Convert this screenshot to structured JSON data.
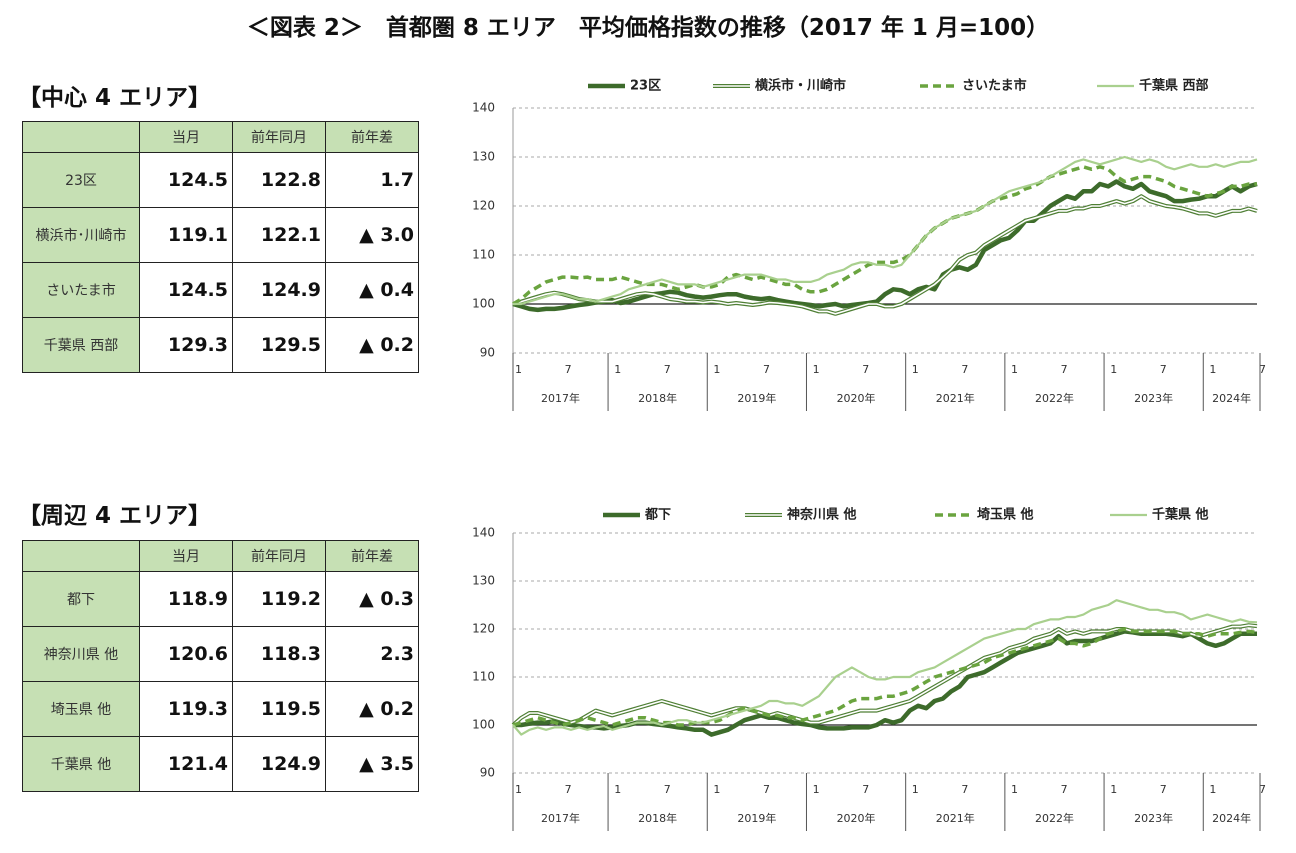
{
  "title": "＜図表 2＞　首都圏 8 エリア　平均価格指数の推移（2017 年 1 月=100）",
  "tables": [
    {
      "heading": "【中心 4 エリア】",
      "header": [
        "当月",
        "前年同月",
        "前年差"
      ],
      "rows": [
        {
          "label": "23区",
          "cells": [
            "124.5",
            "122.8",
            "1.7"
          ]
        },
        {
          "label": "横浜市･川崎市",
          "cells": [
            "119.1",
            "122.1",
            "▲ 3.0"
          ]
        },
        {
          "label": "さいたま市",
          "cells": [
            "124.5",
            "124.9",
            "▲ 0.4"
          ]
        },
        {
          "label": "千葉県 西部",
          "cells": [
            "129.3",
            "129.5",
            "▲ 0.2"
          ]
        }
      ]
    },
    {
      "heading": "【周辺 4 エリア】",
      "header": [
        "当月",
        "前年同月",
        "前年差"
      ],
      "rows": [
        {
          "label": "都下",
          "cells": [
            "118.9",
            "119.2",
            "▲ 0.3"
          ]
        },
        {
          "label": "神奈川県 他",
          "cells": [
            "120.6",
            "118.3",
            "2.3"
          ]
        },
        {
          "label": "埼玉県 他",
          "cells": [
            "119.3",
            "119.5",
            "▲ 0.2"
          ]
        },
        {
          "label": "千葉県 他",
          "cells": [
            "121.4",
            "124.9",
            "▲ 3.5"
          ]
        }
      ]
    }
  ],
  "chart_data": [
    {
      "type": "line",
      "ylim": [
        90,
        140
      ],
      "yticks": [
        90,
        100,
        110,
        120,
        130,
        140
      ],
      "grid": true,
      "baseline": 100,
      "legend": "top",
      "categories": [
        "1",
        null,
        null,
        null,
        null,
        null,
        "7",
        null,
        null,
        null,
        null,
        null,
        "1",
        null,
        null,
        null,
        null,
        null,
        "7",
        null,
        null,
        null,
        null,
        null,
        "1",
        null,
        null,
        null,
        null,
        null,
        "7",
        null,
        null,
        null,
        null,
        null,
        "1",
        null,
        null,
        null,
        null,
        null,
        "7",
        null,
        null,
        null,
        null,
        null,
        "1",
        null,
        null,
        null,
        null,
        null,
        "7",
        null,
        null,
        null,
        null,
        null,
        "1",
        null,
        null,
        null,
        null,
        null,
        "7",
        null,
        null,
        null,
        null,
        null,
        "1",
        null,
        null,
        null,
        null,
        null,
        "7",
        null,
        null,
        null,
        null,
        null,
        "1",
        null,
        null,
        null,
        null,
        null,
        "7"
      ],
      "year_labels": [
        "2017年",
        "2018年",
        "2019年",
        "2020年",
        "2021年",
        "2022年",
        "2023年",
        "2024年"
      ],
      "series": [
        {
          "name": "23区",
          "color": "#3d6b2b",
          "line_style": "thick",
          "values": [
            100,
            99.5,
            99,
            98.8,
            99,
            99,
            99.2,
            99.5,
            99.8,
            100,
            100.3,
            100.5,
            100.8,
            100.2,
            100.5,
            101,
            101.5,
            102,
            102.2,
            102.5,
            102.3,
            101.8,
            101.5,
            101.3,
            101.5,
            101.8,
            102,
            102,
            101.5,
            101.2,
            101,
            101.2,
            100.8,
            100.5,
            100.2,
            100,
            99.8,
            99.5,
            99.8,
            100,
            99.5,
            99.8,
            100,
            100.2,
            100.5,
            102,
            103,
            102.8,
            102,
            103,
            103.5,
            103,
            106,
            107,
            107.5,
            107,
            108,
            111,
            112,
            113,
            113.5,
            115,
            117,
            117,
            118.5,
            120,
            121,
            122,
            121.5,
            123,
            123,
            124.5,
            124,
            125,
            124,
            123.5,
            124.5,
            123,
            122.5,
            122,
            121,
            121,
            121.3,
            121.5,
            122,
            122,
            123,
            124,
            123,
            124,
            124.5
          ]
        },
        {
          "name": "横浜市・川崎市",
          "color": "#4f7f35",
          "line_style": "double",
          "values": [
            100,
            100.5,
            101,
            101.5,
            102,
            102.3,
            102,
            101.5,
            101,
            100.8,
            100.5,
            100.5,
            100.5,
            101,
            101.5,
            102,
            102.2,
            102,
            101.5,
            101,
            100.8,
            100.5,
            100.5,
            100.3,
            100.5,
            100.3,
            100,
            100.2,
            100,
            99.8,
            100,
            100.3,
            100.2,
            100,
            99.8,
            99.5,
            99,
            98.5,
            98.5,
            98,
            98.5,
            99,
            99.5,
            100,
            100,
            99.5,
            99.5,
            100,
            101,
            102,
            103,
            104,
            105.5,
            107,
            109,
            110,
            110.5,
            112,
            113,
            114,
            115,
            116,
            117,
            117.5,
            118,
            118.5,
            119,
            119,
            119.5,
            119.5,
            120,
            120,
            120.5,
            121,
            120.5,
            121,
            122,
            121,
            120.5,
            120,
            119.8,
            119.5,
            119,
            118.5,
            118.5,
            118,
            118.5,
            119,
            119,
            119.5,
            119
          ]
        },
        {
          "name": "さいたま市",
          "color": "#6aa43f",
          "line_style": "dashed",
          "values": [
            100,
            101,
            102.5,
            103.5,
            104.5,
            105,
            105.5,
            105.5,
            105.3,
            105.5,
            105,
            105,
            105,
            105.5,
            105,
            104.5,
            104,
            104,
            104,
            103.5,
            103,
            103.5,
            104,
            103.5,
            103.5,
            104,
            105.5,
            106,
            105.5,
            105,
            105.5,
            105,
            104.5,
            104,
            104,
            103,
            102.5,
            102.5,
            103,
            104,
            105,
            106,
            107,
            108,
            108.5,
            108.5,
            108.5,
            109,
            110,
            112,
            114,
            115.5,
            116.5,
            117.5,
            118,
            118.5,
            119,
            120,
            121,
            121.5,
            122,
            122.5,
            123.5,
            124,
            125,
            126,
            126.5,
            127,
            127.5,
            128,
            127.5,
            128,
            127.5,
            126,
            125,
            125.5,
            126,
            126,
            125.5,
            125,
            124,
            123.5,
            123,
            122.5,
            122,
            122.5,
            123,
            124,
            124,
            124.5,
            124.5
          ]
        },
        {
          "name": "千葉県 西部",
          "color": "#a9d08e",
          "line_style": "thin",
          "values": [
            100,
            100,
            100.5,
            101,
            101.5,
            102,
            102,
            101.5,
            101,
            101,
            100.5,
            101,
            101.5,
            102,
            103,
            103.5,
            104,
            104.5,
            105,
            104.5,
            104,
            104,
            104,
            103.5,
            104,
            104.5,
            105,
            105.5,
            106,
            106,
            106,
            105.5,
            105,
            105,
            104.5,
            104.5,
            104.5,
            105,
            106,
            106.5,
            107,
            108,
            108.5,
            108.5,
            108,
            108,
            107.5,
            108,
            110,
            112,
            114,
            115.5,
            116.5,
            117.5,
            118,
            118.5,
            119,
            120,
            121,
            122,
            123,
            123.5,
            124,
            124.5,
            125,
            126,
            127,
            128,
            129,
            129.5,
            129,
            128.5,
            129,
            129.5,
            130,
            129.5,
            129,
            129.5,
            129,
            128,
            127.5,
            128,
            128.5,
            128,
            128,
            128.5,
            128,
            128.5,
            129,
            129,
            129.5
          ]
        }
      ]
    },
    {
      "type": "line",
      "ylim": [
        90,
        140
      ],
      "yticks": [
        90,
        100,
        110,
        120,
        130,
        140
      ],
      "grid": true,
      "baseline": 100,
      "legend": "top",
      "categories": [
        "1",
        null,
        null,
        null,
        null,
        null,
        "7",
        null,
        null,
        null,
        null,
        null,
        "1",
        null,
        null,
        null,
        null,
        null,
        "7",
        null,
        null,
        null,
        null,
        null,
        "1",
        null,
        null,
        null,
        null,
        null,
        "7",
        null,
        null,
        null,
        null,
        null,
        "1",
        null,
        null,
        null,
        null,
        null,
        "7",
        null,
        null,
        null,
        null,
        null,
        "1",
        null,
        null,
        null,
        null,
        null,
        "7",
        null,
        null,
        null,
        null,
        null,
        "1",
        null,
        null,
        null,
        null,
        null,
        "7",
        null,
        null,
        null,
        null,
        null,
        "1",
        null,
        null,
        null,
        null,
        null,
        "7",
        null,
        null,
        null,
        null,
        null,
        "1",
        null,
        null,
        null,
        null,
        null,
        "7"
      ],
      "year_labels": [
        "2017年",
        "2018年",
        "2019年",
        "2020年",
        "2021年",
        "2022年",
        "2023年",
        "2024年"
      ],
      "series": [
        {
          "name": "都下",
          "color": "#3d6b2b",
          "line_style": "thick",
          "values": [
            100,
            100,
            100.3,
            100.5,
            100.5,
            100.8,
            100.3,
            100,
            99.8,
            99.5,
            99.5,
            99.3,
            99.5,
            99.8,
            100,
            100.5,
            100.5,
            100.2,
            100,
            99.8,
            99.5,
            99.3,
            99,
            99,
            98,
            98.5,
            99,
            100,
            101,
            101.5,
            102,
            101.5,
            101.5,
            101,
            100.5,
            100.2,
            100,
            99.5,
            99.3,
            99.3,
            99.3,
            99.5,
            99.5,
            99.5,
            100,
            101,
            100.5,
            101,
            103,
            104,
            103.5,
            105,
            105.5,
            107,
            108,
            110,
            110.5,
            111,
            112,
            113,
            114,
            115,
            115.5,
            116,
            116.5,
            117,
            118.5,
            117,
            117.5,
            117.5,
            117.5,
            118,
            118.5,
            119,
            119.5,
            119.3,
            119,
            119,
            119,
            119,
            118.8,
            118.5,
            119,
            118,
            117,
            116.5,
            117,
            118,
            119,
            119,
            119
          ]
        },
        {
          "name": "神奈川県 他",
          "color": "#4f7f35",
          "line_style": "double",
          "values": [
            100,
            101.5,
            102.5,
            102.5,
            102,
            101.5,
            101,
            100.5,
            101,
            102,
            103,
            102.5,
            102,
            102.5,
            103,
            103.5,
            104,
            104.5,
            105,
            104.5,
            104,
            103.5,
            103,
            102.5,
            102,
            102.5,
            103,
            103.5,
            103.5,
            103,
            102.5,
            102,
            102.5,
            102,
            101.5,
            101,
            100.5,
            100.5,
            101,
            101.5,
            102,
            102.5,
            103,
            103,
            103,
            103.5,
            104,
            104.5,
            105,
            106,
            107,
            108,
            109,
            110,
            111,
            112,
            113,
            114,
            114.5,
            115,
            116,
            116.5,
            117,
            118,
            118.5,
            119,
            120,
            119,
            119.5,
            119,
            119.5,
            119.5,
            119.5,
            120,
            120,
            119.5,
            119.5,
            119.5,
            119.5,
            119.5,
            119.5,
            119,
            119,
            118.5,
            119,
            119.5,
            120,
            120.5,
            120.5,
            120.8,
            120.6
          ]
        },
        {
          "name": "埼玉県 他",
          "color": "#6aa43f",
          "line_style": "dashed",
          "values": [
            100,
            100.5,
            101,
            101.5,
            101,
            100.5,
            100,
            100.5,
            101,
            101.5,
            101,
            100.5,
            100,
            100.5,
            101,
            101.5,
            101.5,
            101,
            100.5,
            100.5,
            100,
            100,
            100.5,
            100.5,
            100.5,
            101,
            102,
            103,
            103.5,
            103,
            102.5,
            102,
            102,
            101.5,
            101.5,
            101,
            101.5,
            102,
            102.5,
            103,
            104,
            105,
            105.5,
            105.5,
            105.5,
            106,
            106,
            106.5,
            107,
            108,
            109,
            110,
            110.5,
            111,
            111.5,
            112,
            112.5,
            113,
            114,
            114.5,
            115,
            115.5,
            116,
            116.5,
            117,
            117.5,
            118,
            117,
            117,
            116.5,
            117,
            118,
            119,
            119.5,
            120,
            119.5,
            119.5,
            119.5,
            119.5,
            119.5,
            119.5,
            119,
            119,
            119,
            118.5,
            119,
            119,
            119,
            119.3,
            119.5,
            119.3
          ]
        },
        {
          "name": "千葉県 他",
          "color": "#a9d08e",
          "line_style": "thin",
          "values": [
            100,
            98,
            99,
            99.5,
            99,
            99.5,
            99.5,
            99,
            99.5,
            99,
            99.5,
            99.8,
            99,
            99.5,
            100,
            100.5,
            100.5,
            100.5,
            100,
            100.5,
            101,
            101,
            100.5,
            100.5,
            101,
            101.5,
            102,
            102.5,
            103,
            103.5,
            104,
            105,
            105,
            104.5,
            104.5,
            104,
            105,
            106,
            108,
            110,
            111,
            112,
            111,
            110,
            109.5,
            109.5,
            110,
            110,
            110,
            111,
            111.5,
            112,
            113,
            114,
            115,
            116,
            117,
            118,
            118.5,
            119,
            119.5,
            120,
            120,
            121,
            121.5,
            122,
            122,
            122.5,
            122.5,
            123,
            124,
            124.5,
            125,
            126,
            125.5,
            125,
            124.5,
            124,
            124,
            123.5,
            123.5,
            123,
            122,
            122.5,
            123,
            122.5,
            122,
            121.5,
            122,
            121.5,
            121.4
          ]
        }
      ]
    }
  ]
}
